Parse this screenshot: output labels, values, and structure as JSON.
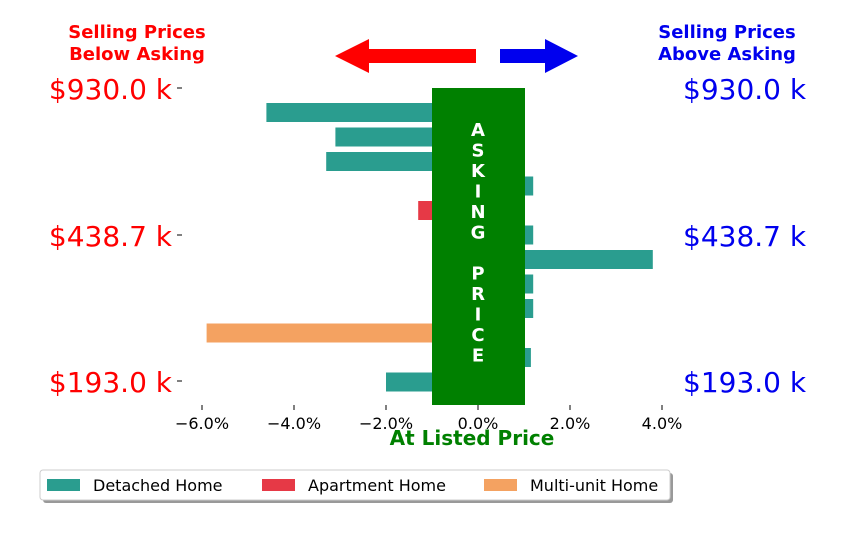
{
  "chart_data": {
    "type": "bar",
    "orientation": "horizontal",
    "xlabel": "At Listed Price",
    "xlim": [
      -6.5,
      4.5
    ],
    "x_ticks": [
      -6,
      -4,
      -2,
      0,
      2,
      4
    ],
    "x_tick_labels": [
      "−6.0%",
      "−4.0%",
      "−2.0%",
      "0.0%",
      "2.0%",
      "4.0%"
    ],
    "left_header": [
      "Selling Prices",
      "Below Asking"
    ],
    "right_header": [
      "Selling Prices",
      "Above Asking"
    ],
    "price_labels": [
      "$930.0 k",
      "$438.7 k",
      "$193.0 k"
    ],
    "center_band_letters": [
      "A",
      "S",
      "K",
      "I",
      "N",
      "G",
      "",
      "P",
      "R",
      "I",
      "C",
      "E"
    ],
    "bars": [
      {
        "value": -4.6,
        "type": "Detached Home"
      },
      {
        "value": -3.1,
        "type": "Detached Home"
      },
      {
        "value": -3.3,
        "type": "Detached Home"
      },
      {
        "value": 1.2,
        "type": "Detached Home"
      },
      {
        "value": -1.3,
        "type": "Apartment Home"
      },
      {
        "value": 1.2,
        "type": "Detached Home"
      },
      {
        "value": 3.8,
        "type": "Detached Home"
      },
      {
        "value": 1.2,
        "type": "Detached Home"
      },
      {
        "value": 1.2,
        "type": "Detached Home"
      },
      {
        "value": -5.9,
        "type": "Multi-unit Home"
      },
      {
        "value": 1.15,
        "type": "Detached Home"
      },
      {
        "value": -2.0,
        "type": "Detached Home"
      }
    ],
    "legend": [
      {
        "label": "Detached Home",
        "color": "#2a9d8f"
      },
      {
        "label": "Apartment Home",
        "color": "#e63946"
      },
      {
        "label": "Multi-unit Home",
        "color": "#f4a261"
      }
    ],
    "colors": {
      "below": "#ff0000",
      "above": "#0000ee",
      "band": "#008000",
      "xlabel": "#008000"
    }
  }
}
